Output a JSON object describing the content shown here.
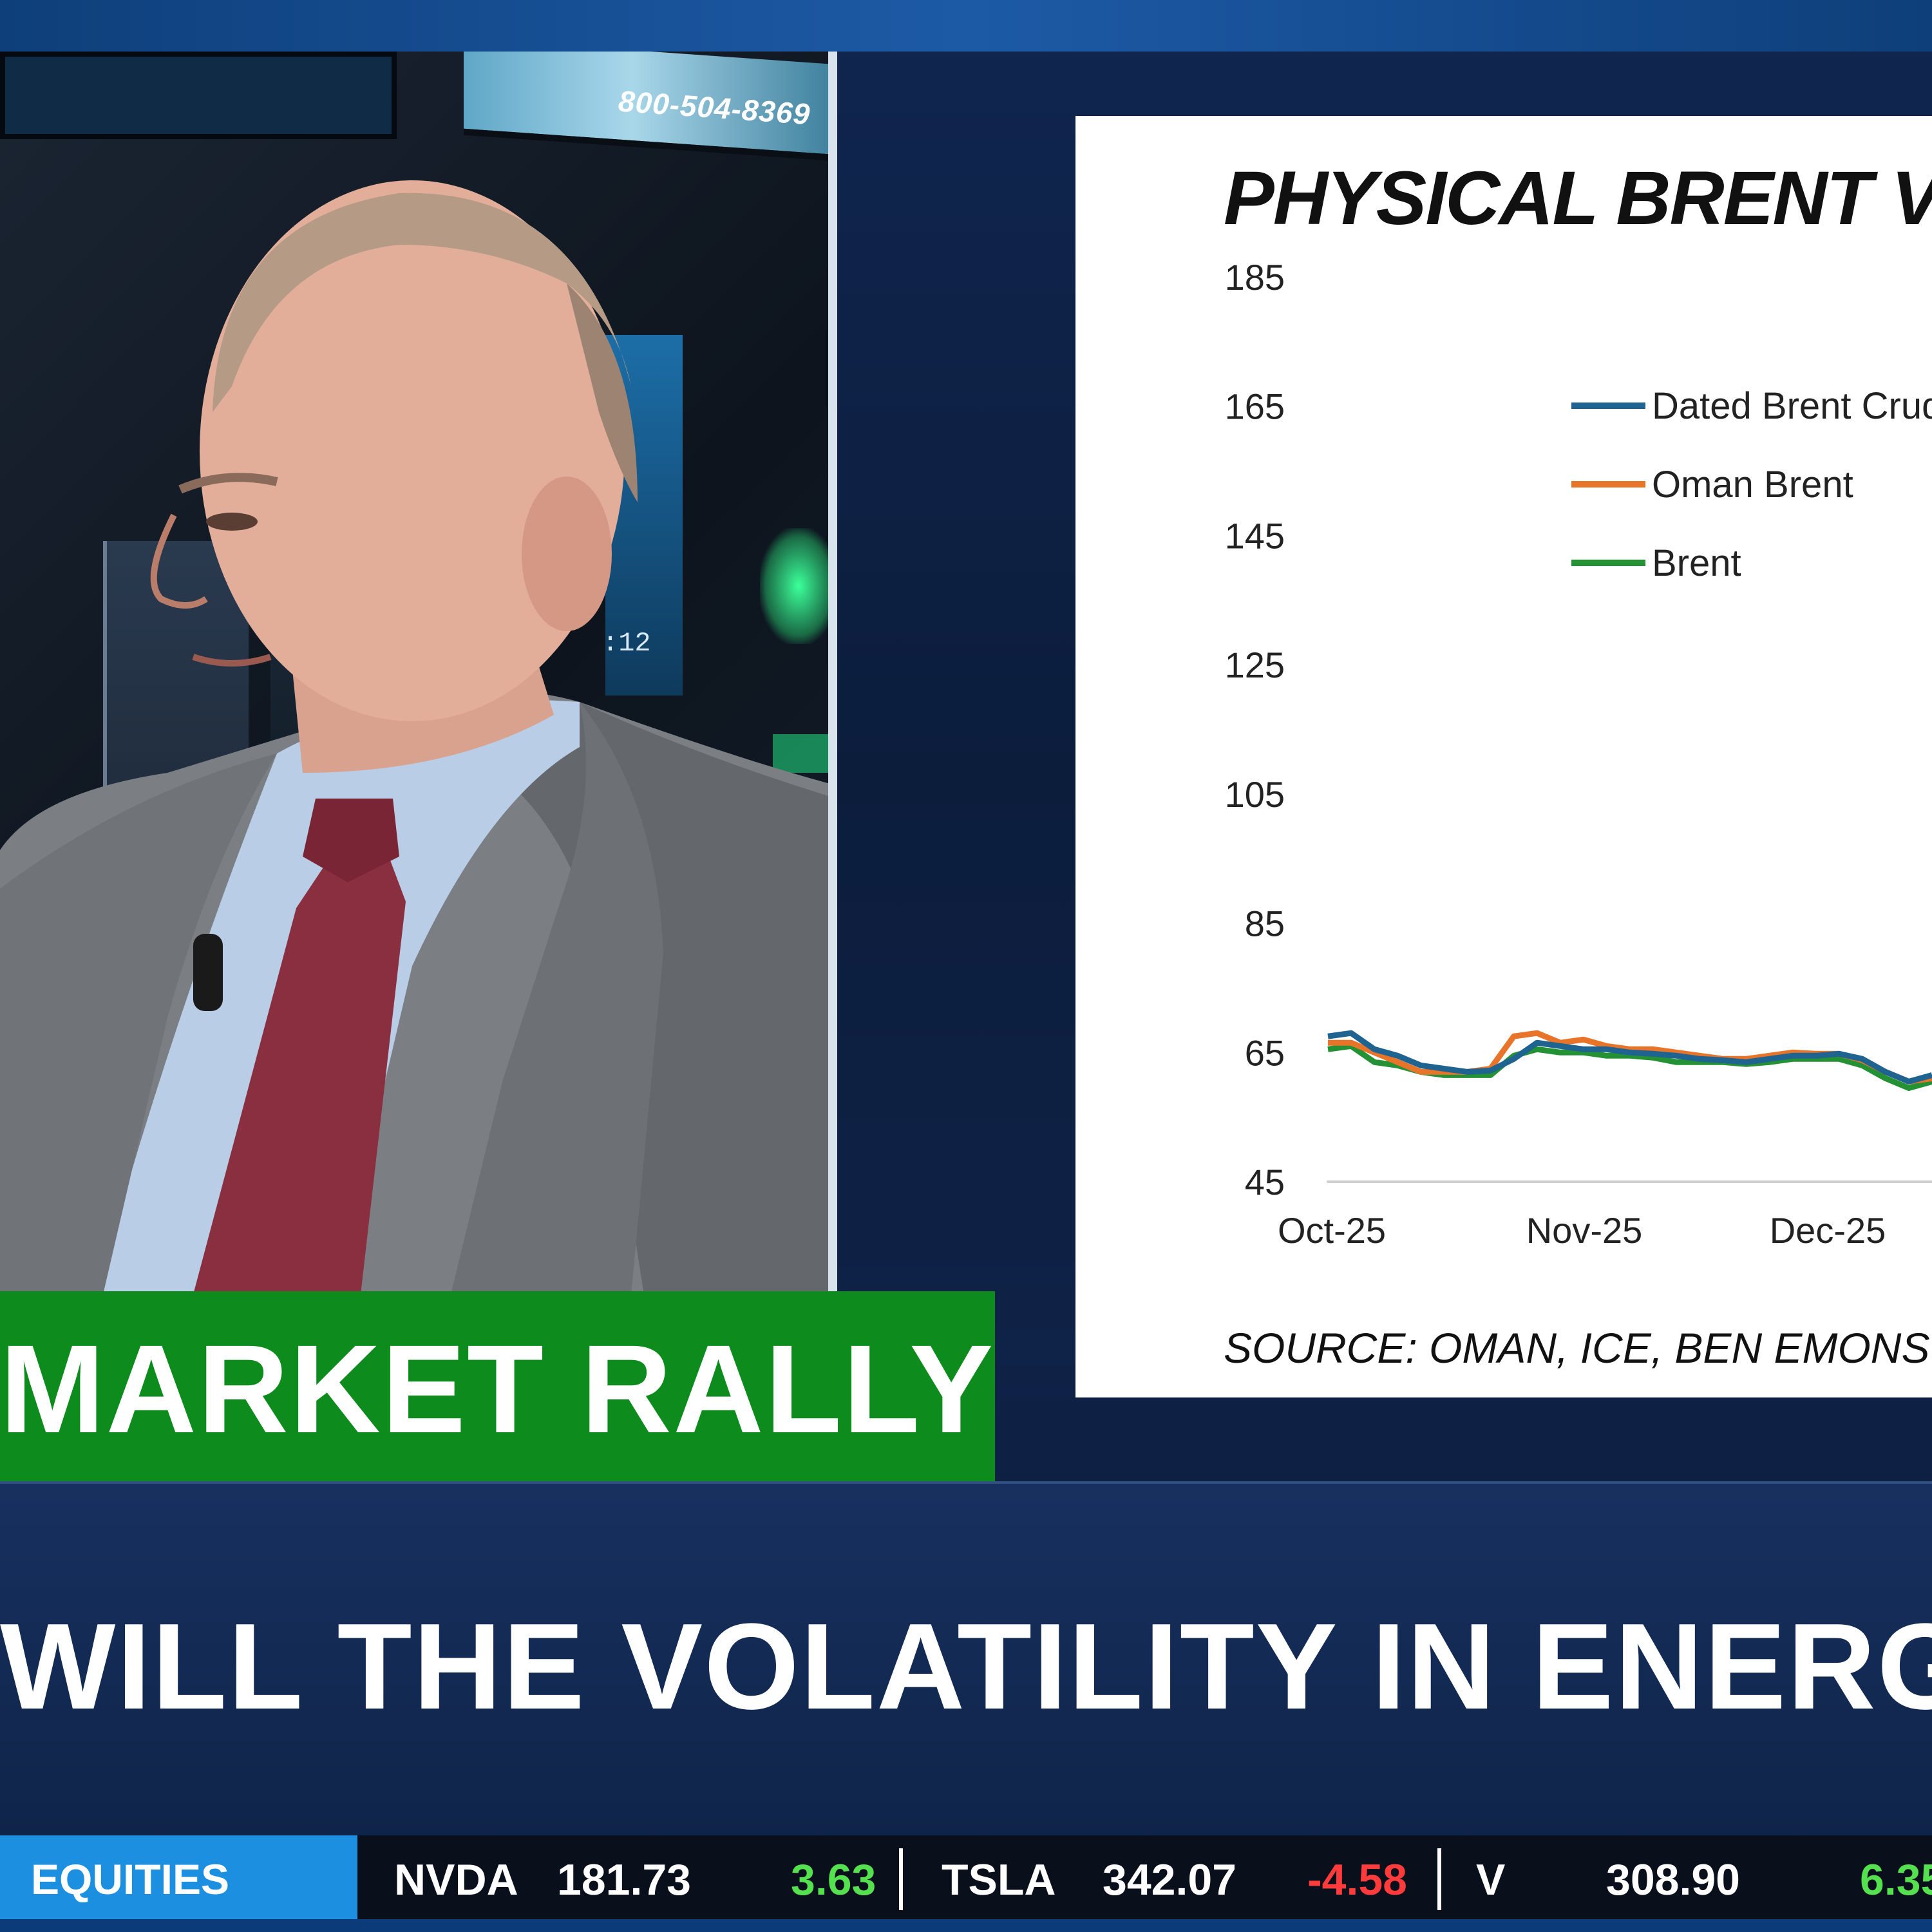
{
  "studio": {
    "wall_phone": "800-504-8369",
    "wall_clock": ":12"
  },
  "chart": {
    "title": "PHYSICAL BRENT VS",
    "source": "SOURCE: OMAN, ICE, BEN EMONS"
  },
  "chart_data": {
    "type": "line",
    "title": "PHYSICAL BRENT VS",
    "y_ticks": [
      185,
      165,
      145,
      125,
      105,
      85,
      65,
      45
    ],
    "ylim": [
      45,
      185
    ],
    "x_ticks": [
      "Oct-25",
      "Nov-25",
      "Dec-25"
    ],
    "series": [
      {
        "name": "Dated Brent Crude",
        "color": "#1f6391",
        "values": [
          67.5,
          68,
          65.5,
          64.5,
          63,
          62.5,
          62,
          62.2,
          64,
          66.5,
          66,
          65.5,
          65.5,
          65,
          64.8,
          64.5,
          64,
          63.8,
          63.5,
          64,
          64.5,
          64.5,
          64.8,
          64,
          62,
          60.5,
          61.5
        ]
      },
      {
        "name": "Oman Brent",
        "color": "#e8742a",
        "values": [
          66.5,
          66.5,
          65,
          63.5,
          62,
          62,
          62,
          62.5,
          67.5,
          68,
          66.5,
          67,
          66,
          65.5,
          65.5,
          65,
          64.5,
          64,
          64,
          64.5,
          65,
          64.8,
          64.8,
          63.8,
          62,
          60.5,
          61
        ]
      },
      {
        "name": "Brent",
        "color": "#239134",
        "values": [
          65.5,
          66,
          63.5,
          63,
          62,
          61.5,
          61.5,
          61.5,
          64.5,
          65.5,
          65,
          65,
          64.5,
          64.5,
          64.2,
          63.5,
          63.5,
          63.5,
          63.2,
          63.5,
          64,
          64,
          64,
          63,
          61,
          59.5,
          60.5
        ]
      }
    ]
  },
  "lower_third": {
    "topic": "MARKET RALLY",
    "headline": "WILL THE VOLATILITY IN ENERGY REMA"
  },
  "ticker": {
    "label": "EQUITIES",
    "items": [
      {
        "symbol": "NVDA",
        "price": "181.73",
        "change": "3.63",
        "direction": "up"
      },
      {
        "symbol": "TSLA",
        "price": "342.07",
        "change": "-4.58",
        "direction": "down"
      },
      {
        "symbol": "V",
        "price": "308.90",
        "change": "6.35",
        "direction": "up"
      }
    ]
  },
  "colors": {
    "topic_bar": "#0d8c1d",
    "ticker_label": "#1d8fe0",
    "up": "#55e04f",
    "down": "#ff3b3b"
  }
}
